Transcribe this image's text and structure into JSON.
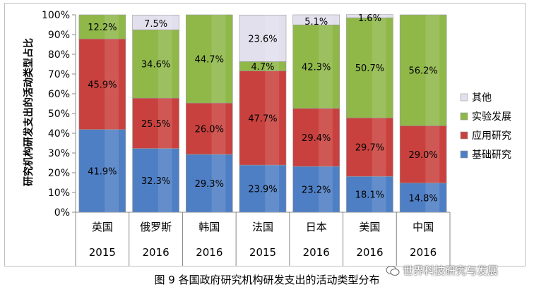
{
  "chart_data": {
    "type": "bar",
    "stacked": true,
    "ylabel": "研究机构研发支出的活动类型占比",
    "ylim": [
      0,
      100
    ],
    "yticks": [
      "0%",
      "10%",
      "20%",
      "30%",
      "40%",
      "50%",
      "60%",
      "70%",
      "80%",
      "90%",
      "100%"
    ],
    "categories": [
      "英国",
      "俄罗斯",
      "韩国",
      "法国",
      "日本",
      "美国",
      "中国"
    ],
    "years": [
      "2015",
      "2016",
      "2016",
      "2015",
      "2016",
      "2016",
      "2016"
    ],
    "series": [
      {
        "name": "基础研究",
        "color": "#4e7fc4",
        "values": [
          41.9,
          32.3,
          29.3,
          23.9,
          23.2,
          18.1,
          14.8
        ],
        "labels": [
          "41.9%",
          "32.3%",
          "29.3%",
          "23.9%",
          "23.2%",
          "18.1%",
          "14.8%"
        ]
      },
      {
        "name": "应用研究",
        "color": "#c9413e",
        "values": [
          45.9,
          25.5,
          26.0,
          47.7,
          29.4,
          29.7,
          29.0
        ],
        "labels": [
          "45.9%",
          "25.5%",
          "26.0%",
          "47.7%",
          "29.4%",
          "29.7%",
          "29.0%"
        ]
      },
      {
        "name": "实验发展",
        "color": "#8fb849",
        "values": [
          12.2,
          34.6,
          44.7,
          4.7,
          42.3,
          50.7,
          56.2
        ],
        "labels": [
          "12.2%",
          "34.6%",
          "44.7%",
          "4.7%",
          "42.3%",
          "50.7%",
          "56.2%"
        ]
      },
      {
        "name": "其他",
        "color": "#e3e0ee",
        "values": [
          0,
          7.5,
          0,
          23.6,
          5.1,
          1.6,
          0
        ],
        "labels": [
          "",
          "7.5%",
          "",
          "23.6%",
          "5.1%",
          "1.6%",
          ""
        ]
      }
    ],
    "legend": {
      "position": "right",
      "order": [
        "其他",
        "实验发展",
        "应用研究",
        "基础研究"
      ]
    },
    "grid": false
  },
  "caption": "图 9  各国政府研究机构研发支出的活动类型分布",
  "watermark": "世界科技研究与发展"
}
